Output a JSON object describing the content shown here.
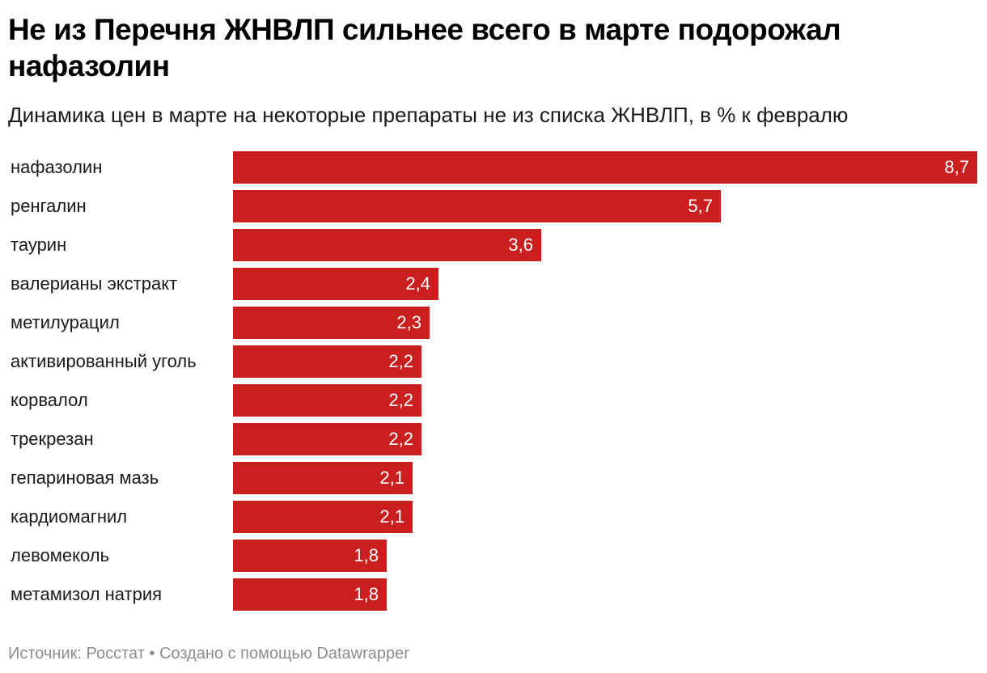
{
  "chart_data": {
    "type": "bar",
    "orientation": "horizontal",
    "title": "Не из Перечня ЖНВЛП сильнее всего в марте подорожал нафазолин",
    "subtitle": "Динамика цен в марте на некоторые препараты не из списка ЖНВЛП, в % к февралю",
    "categories": [
      "нафазолин",
      "ренгалин",
      "таурин",
      "валерианы экстракт",
      "метилурацил",
      "активированный уголь",
      "корвалол",
      "трекрезан",
      "гепариновая мазь",
      "кардиомагнил",
      "левомеколь",
      "метамизол натрия"
    ],
    "values": [
      8.7,
      5.7,
      3.6,
      2.4,
      2.3,
      2.2,
      2.2,
      2.2,
      2.1,
      2.1,
      1.8,
      1.8
    ],
    "value_labels": [
      "8,7",
      "5,7",
      "3,6",
      "2,4",
      "2,3",
      "2,2",
      "2,2",
      "2,2",
      "2,1",
      "2,1",
      "1,8",
      "1,8"
    ],
    "xlim": [
      0,
      8.7
    ],
    "xlabel": "",
    "ylabel": "",
    "grid": false,
    "legend": "none",
    "bar_color": "#c91f1f"
  },
  "footer": {
    "text": "Источник: Росстат • Создано с помощью Datawrapper"
  }
}
